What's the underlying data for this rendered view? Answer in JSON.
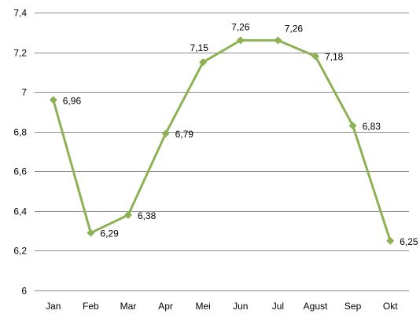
{
  "chart_data": {
    "type": "line",
    "title": "",
    "xlabel": "",
    "ylabel": "",
    "categories": [
      "Jan",
      "Feb",
      "Mar",
      "Apr",
      "Mei",
      "Jun",
      "Jul",
      "Agust",
      "Sep",
      "Okt"
    ],
    "series": [
      {
        "values": [
          6.96,
          6.29,
          6.38,
          6.79,
          7.15,
          7.26,
          7.26,
          7.18,
          6.83,
          6.25
        ],
        "labels": [
          "6,96",
          "6,29",
          "6,38",
          "6,79",
          "7,15",
          "7,26",
          "7,26",
          "7,18",
          "6,83",
          "6,25"
        ],
        "color": "#8db255"
      }
    ],
    "ylim": [
      6,
      7.4
    ],
    "yticks": [
      6,
      6.2,
      6.4,
      6.6,
      6.8,
      7,
      7.2,
      7.4
    ],
    "ytick_labels": [
      "6",
      "6,2",
      "6,4",
      "6,6",
      "6,8",
      "7",
      "7,2",
      "7,4"
    ],
    "grid": true,
    "gridline_color": "#8c8c8c",
    "legend": "none",
    "marker": "diamond"
  }
}
